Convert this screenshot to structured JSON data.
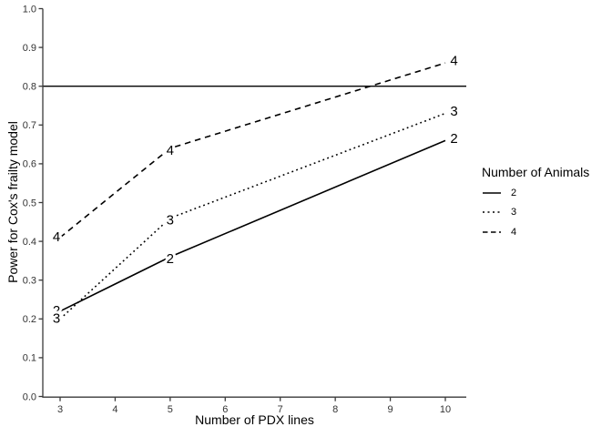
{
  "chart_data": {
    "type": "line",
    "title": "",
    "xlabel": "Number of PDX lines",
    "ylabel": "Power for Cox's frailty model",
    "xlim": [
      3,
      10
    ],
    "ylim": [
      0.0,
      1.0
    ],
    "x_ticks": [
      3,
      4,
      5,
      6,
      7,
      8,
      9,
      10
    ],
    "y_ticks": [
      "0.0",
      "0.1",
      "0.2",
      "0.3",
      "0.4",
      "0.5",
      "0.6",
      "0.7",
      "0.8",
      "0.9",
      "1.0"
    ],
    "grid": "off",
    "reference_line_y": 0.8,
    "point_labels_show_series_name": true,
    "legend": {
      "title": "Number of Animals",
      "position": "right",
      "entries": [
        "2",
        "3",
        "4"
      ]
    },
    "series": [
      {
        "name": "2",
        "style": "solid",
        "x": [
          3,
          5,
          10
        ],
        "y": [
          0.22,
          0.36,
          0.66
        ]
      },
      {
        "name": "3",
        "style": "dotted",
        "x": [
          3,
          5,
          10
        ],
        "y": [
          0.2,
          0.46,
          0.73
        ]
      },
      {
        "name": "4",
        "style": "dashed",
        "x": [
          3,
          5,
          10
        ],
        "y": [
          0.41,
          0.64,
          0.86
        ]
      }
    ]
  },
  "colors": {
    "background": "#ffffff",
    "data_line": "#000000",
    "reference_line": "#000000",
    "axis_line": "#3a3a3a",
    "tick_label": "#333333",
    "text": "#000000"
  }
}
